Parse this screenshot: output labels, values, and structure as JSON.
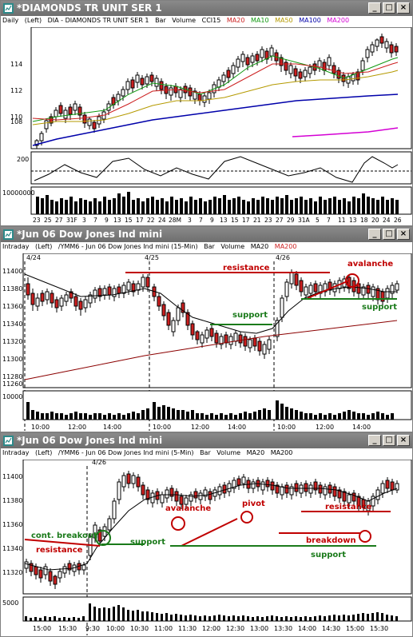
{
  "colors": {
    "desktop": "#c0c0c0",
    "candle_up": "#ffffff",
    "candle_down": "#cc1f1f",
    "ma20": "#cc1f1f",
    "ma10": "#119911",
    "ma50": "#b59a00",
    "ma100": "#0000aa",
    "ma200": "#d400d4",
    "annotation_red": "#c00000",
    "annotation_green": "#1a7a1a"
  },
  "window_buttons": {
    "minimize": "_",
    "maximize": "□",
    "close": "×"
  },
  "panels": [
    {
      "title": "*DIAMONDS TR UNIT SER 1",
      "info": {
        "period": "Daily",
        "scale": "(Left)",
        "symbol": "DIA - DIAMONDS TR UNIT SER 1",
        "type": "Bar",
        "volume": "Volume",
        "cci": "CCI15",
        "ma20": "MA20",
        "ma10": "MA10",
        "ma50": "MA50",
        "ma100": "MA100",
        "ma200": "MA200"
      },
      "y_ticks": [
        "114",
        "112",
        "110",
        "108"
      ],
      "cci_label": "200",
      "volume_label": "10000000",
      "x_ticks": [
        "23",
        "25",
        "27",
        "31F",
        "3",
        "7",
        "9",
        "13",
        "15",
        "17",
        "22",
        "24",
        "28M",
        "3",
        "7",
        "9",
        "13",
        "15",
        "17",
        "21",
        "23",
        "27",
        "29",
        "31A",
        "5",
        "7",
        "11",
        "13",
        "18",
        "20",
        "24",
        "26"
      ]
    },
    {
      "title": "*Jun 06  Dow Jones Ind mini",
      "info": {
        "period": "Intraday",
        "scale": "(Left)",
        "symbol": "/YMM6 - Jun 06  Dow Jones Ind mini  (15-Min)",
        "type": "Bar",
        "volume": "Volume",
        "ma20": "MA20",
        "ma200": "MA200"
      },
      "y_ticks": [
        "11400",
        "11380",
        "11360",
        "11340",
        "11320",
        "11300",
        "11280",
        "11260"
      ],
      "date_markers": [
        "4/24",
        "4/25",
        "4/26"
      ],
      "volume_label": "10000",
      "x_ticks": [
        "10:00",
        "12:00",
        "14:00",
        "10:00",
        "12:00",
        "14:00",
        "10:00",
        "12:00",
        "14:00"
      ],
      "annotations": {
        "resistance": "resistance",
        "avalanche": "avalanche",
        "support_mid": "support",
        "support_right": "support"
      }
    },
    {
      "title": "*Jun 06  Dow Jones Ind mini",
      "info": {
        "period": "Intraday",
        "scale": "(Left)",
        "symbol": "/YMM6 - Jun 06  Dow Jones Ind mini  (5-Min)",
        "type": "Bar",
        "volume": "Volume",
        "ma20": "MA20",
        "ma200": "MA200"
      },
      "y_ticks": [
        "11400",
        "11380",
        "11360",
        "11340",
        "11320"
      ],
      "date_markers": [
        "4/26"
      ],
      "volume_label": "5000",
      "x_ticks": [
        "15:00",
        "15:30",
        "9:30",
        "10:00",
        "10:30",
        "11:00",
        "11:30",
        "12:00",
        "12:30",
        "13:00",
        "13:30",
        "14:00",
        "14:30",
        "15:00",
        "15:30"
      ],
      "annotations": {
        "cont_breakout": "cont. breakout",
        "resistance_left": "resistance",
        "support_left": "support",
        "avalanche": "avalanche",
        "pivot": "pivot",
        "resistance_right": "resistance",
        "breakdown": "breakdown",
        "support_right": "support"
      }
    }
  ]
}
